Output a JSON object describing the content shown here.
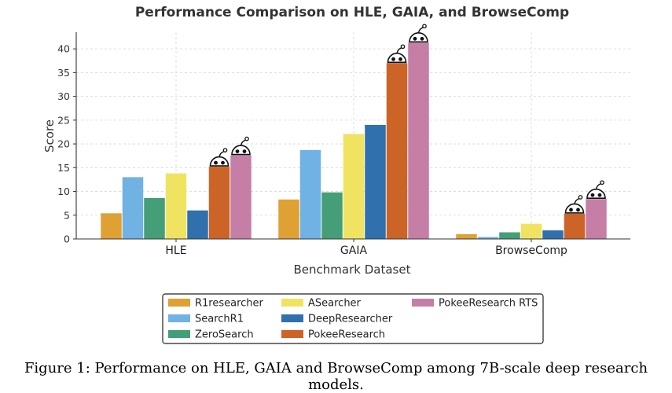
{
  "chart_data": {
    "type": "bar",
    "title": "Performance Comparison on HLE, GAIA, and BrowseComp",
    "xlabel": "Benchmark Dataset",
    "ylabel": "Score",
    "categories": [
      "HLE",
      "GAIA",
      "BrowseComp"
    ],
    "ylim": [
      0,
      43.5
    ],
    "yticks": [
      0,
      5,
      10,
      15,
      20,
      25,
      30,
      35,
      40
    ],
    "grid": true,
    "legend_position": "bottom",
    "series": [
      {
        "name": "R1researcher",
        "color": "#dfa034",
        "values": [
          5.4,
          8.3,
          1.0
        ]
      },
      {
        "name": "SearchR1",
        "color": "#70b2e3",
        "values": [
          13.0,
          18.7,
          0.4
        ]
      },
      {
        "name": "ZeroSearch",
        "color": "#449e77",
        "values": [
          8.6,
          9.8,
          1.4
        ]
      },
      {
        "name": "ASearcher",
        "color": "#f0e361",
        "values": [
          13.8,
          22.1,
          3.2
        ]
      },
      {
        "name": "DeepResearcher",
        "color": "#2f70ad",
        "values": [
          6.0,
          24.0,
          1.8
        ]
      },
      {
        "name": "PokeeResearch",
        "color": "#cc6327",
        "values": [
          15.2,
          37.0,
          5.3
        ]
      },
      {
        "name": "PokeeResearch RTS",
        "color": "#c57ea6",
        "values": [
          17.6,
          41.3,
          8.4
        ]
      }
    ],
    "mascot_series": [
      "PokeeResearch",
      "PokeeResearch RTS"
    ],
    "mascot_icon": "pokee-mascot-icon"
  },
  "caption": "Figure 1: Performance on HLE, GAIA and BrowseComp among 7B-scale deep research models."
}
